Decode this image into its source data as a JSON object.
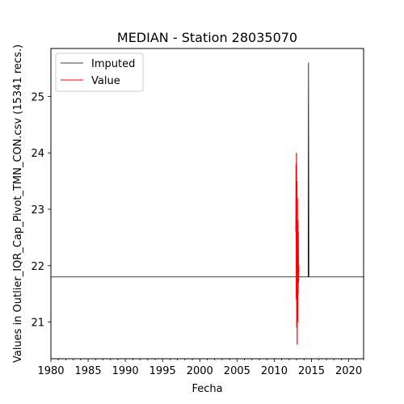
{
  "chart_data": {
    "type": "line",
    "title": "MEDIAN - Station 28035070",
    "xlabel": "Fecha",
    "ylabel": "Values in Outlier_IQR_Cap_Pivot_TMN_CON.csv (15341 recs.)",
    "xlim": [
      1980,
      2022
    ],
    "ylim": [
      20.35,
      25.85
    ],
    "x_ticks": [
      "1980",
      "1985",
      "1990",
      "1995",
      "2000",
      "2005",
      "2010",
      "2015",
      "2020"
    ],
    "y_ticks": [
      "21",
      "22",
      "23",
      "24",
      "25"
    ],
    "legend_position": "upper-left",
    "series": [
      {
        "name": "Imputed",
        "color": "#000000",
        "points": [
          [
            1980,
            21.8
          ],
          [
            2014.55,
            21.8
          ],
          [
            2014.6,
            25.6
          ],
          [
            2014.65,
            21.8
          ],
          [
            2022,
            21.8
          ]
        ]
      },
      {
        "name": "Value",
        "color": "#ff0000",
        "points": [
          [
            2012.9,
            22.6
          ],
          [
            2012.93,
            23.8
          ],
          [
            2012.96,
            21.4
          ],
          [
            2012.99,
            24.0
          ],
          [
            2013.02,
            20.9
          ],
          [
            2013.05,
            23.5
          ],
          [
            2013.08,
            20.6
          ],
          [
            2013.11,
            23.2
          ],
          [
            2013.14,
            21.0
          ],
          [
            2013.17,
            22.8
          ],
          [
            2013.2,
            21.5
          ],
          [
            2013.23,
            22.6
          ],
          [
            2013.26,
            21.7
          ],
          [
            2013.3,
            22.0
          ]
        ]
      }
    ]
  }
}
